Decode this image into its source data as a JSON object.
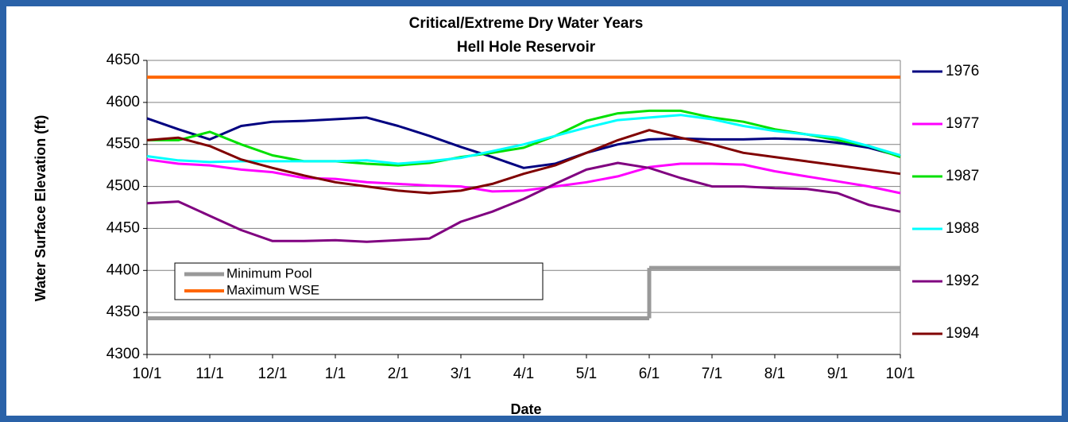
{
  "chart_data": {
    "type": "line",
    "title": "Critical/Extreme Dry Water Years",
    "subtitle": "Hell Hole Reservoir",
    "x_label": "Date",
    "y_label": "Water Surface Elevation (ft)",
    "categories": [
      "10/1",
      null,
      "11/1",
      null,
      "12/1",
      null,
      "1/1",
      null,
      "2/1",
      null,
      "3/1",
      null,
      "4/1",
      null,
      "5/1",
      null,
      "6/1",
      null,
      "7/1",
      null,
      "8/1",
      null,
      "9/1",
      null,
      "10/1"
    ],
    "ylim": [
      4300,
      4650
    ],
    "yticks": [
      4300,
      4350,
      4400,
      4450,
      4500,
      4550,
      4600,
      4650
    ],
    "grid": true,
    "legend": "right",
    "series": [
      {
        "name": "1976",
        "color": "#000080",
        "values": [
          4581,
          4568,
          4556,
          4572,
          4577,
          4578,
          4580,
          4582,
          4572,
          4560,
          4547,
          4535,
          4522,
          4527,
          4540,
          4550,
          4556,
          4557,
          4556,
          4556,
          4557,
          4556,
          4552,
          4546,
          4536
        ]
      },
      {
        "name": "1977",
        "color": "#ff00ff",
        "values": [
          4532,
          4527,
          4525,
          4520,
          4517,
          4510,
          4509,
          4505,
          4503,
          4501,
          4500,
          4494,
          4495,
          4500,
          4505,
          4512,
          4523,
          4527,
          4527,
          4526,
          4518,
          4512,
          4506,
          4500,
          4492
        ]
      },
      {
        "name": "1987",
        "color": "#00e000",
        "values": [
          4555,
          4555,
          4565,
          4550,
          4537,
          4530,
          4530,
          4527,
          4525,
          4528,
          4535,
          4540,
          4546,
          4560,
          4578,
          4587,
          4590,
          4590,
          4582,
          4577,
          4568,
          4562,
          4555,
          4548,
          4535
        ]
      },
      {
        "name": "1988",
        "color": "#00ffff",
        "values": [
          4536,
          4531,
          4529,
          4530,
          4530,
          4530,
          4530,
          4531,
          4527,
          4530,
          4534,
          4542,
          4550,
          4560,
          4570,
          4579,
          4582,
          4585,
          4580,
          4572,
          4566,
          4562,
          4558,
          4548,
          4537
        ]
      },
      {
        "name": "1992",
        "color": "#800080",
        "values": [
          4480,
          4482,
          4465,
          4448,
          4435,
          4435,
          4436,
          4434,
          4436,
          4438,
          4458,
          4470,
          4485,
          4503,
          4520,
          4528,
          4522,
          4510,
          4500,
          4500,
          4498,
          4497,
          4492,
          4478,
          4470
        ]
      },
      {
        "name": "1994",
        "color": "#800000",
        "values": [
          4555,
          4558,
          4548,
          4532,
          4522,
          4513,
          4505,
          4500,
          4495,
          4492,
          4495,
          4503,
          4515,
          4525,
          4540,
          4555,
          4567,
          4558,
          4550,
          4540,
          4535,
          4530,
          4525,
          4520,
          4515
        ]
      }
    ],
    "limits_legend": "lower left",
    "limits": [
      {
        "name": "Minimum Pool",
        "color": "#999999",
        "step": true,
        "values": [
          4343,
          4343,
          4343,
          4343,
          4343,
          4343,
          4343,
          4343,
          4343,
          4343,
          4343,
          4343,
          4343,
          4343,
          4343,
          4343,
          4403,
          4403,
          4403,
          4403,
          4403,
          4403,
          4403,
          4403,
          4403
        ]
      },
      {
        "name": "Maximum WSE",
        "color": "#ff6600",
        "step": false,
        "values": [
          4630,
          4630,
          4630,
          4630,
          4630,
          4630,
          4630,
          4630,
          4630,
          4630,
          4630,
          4630,
          4630,
          4630,
          4630,
          4630,
          4630,
          4630,
          4630,
          4630,
          4630,
          4630,
          4630,
          4630,
          4630
        ]
      }
    ]
  }
}
